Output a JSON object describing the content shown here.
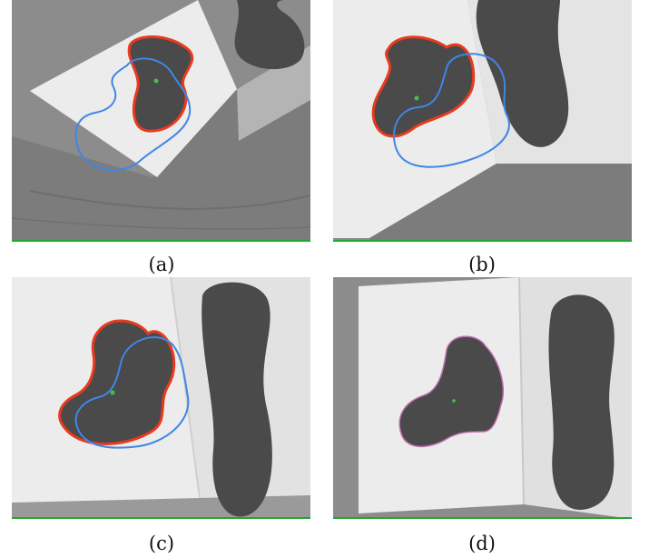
{
  "figure": {
    "panels": [
      {
        "caption": "(a)"
      },
      {
        "caption": "(b)"
      },
      {
        "caption": "(c)"
      },
      {
        "caption": "(d)"
      }
    ]
  },
  "colors": {
    "wall": "#8c8c8c",
    "floor": "#7d7d7d",
    "paper": "#ececec",
    "shape": "#4a4a4a",
    "active_contour": "#e83a1e",
    "initial_contour": "#3f86e6",
    "centroid": "#3fc24a",
    "frame_edge": "#1ea832"
  }
}
